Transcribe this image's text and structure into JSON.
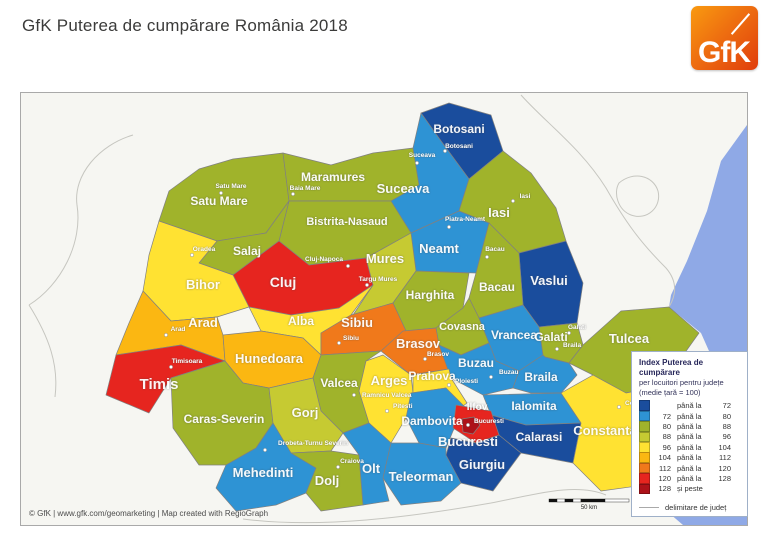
{
  "header": {
    "title": "GfK Puterea de cumpărare România 2018",
    "logo_text": "GfK"
  },
  "footer": {
    "credit": "© GfK | www.gfk.com/geomarketing | Map created with RegioGraph"
  },
  "legend": {
    "title": "Index Puterea de cumpărare",
    "subtitle": "per locuitori pentru județe",
    "note": "(medie țară = 100)",
    "delimiter_label": "delimitare de județ",
    "buckets": [
      {
        "color": "#1a4d9d",
        "from": "",
        "rel": "până la",
        "to": "72"
      },
      {
        "color": "#2e93d4",
        "from": "72",
        "rel": "până la",
        "to": "80"
      },
      {
        "color": "#a0b32b",
        "from": "80",
        "rel": "până la",
        "to": "88"
      },
      {
        "color": "#c6ca32",
        "from": "88",
        "rel": "până la",
        "to": "96"
      },
      {
        "color": "#ffe232",
        "from": "96",
        "rel": "până la",
        "to": "104"
      },
      {
        "color": "#fbb712",
        "from": "104",
        "rel": "până la",
        "to": "112"
      },
      {
        "color": "#f0791b",
        "from": "112",
        "rel": "până la",
        "to": "120"
      },
      {
        "color": "#e6251f",
        "from": "120",
        "rel": "până la",
        "to": "128"
      },
      {
        "color": "#ad1219",
        "from": "128",
        "rel": "și peste",
        "to": ""
      }
    ]
  },
  "map": {
    "sea_color": "#8fa9e6",
    "land_color": "#f6f6f2",
    "scale_label": "50 km",
    "counties": [
      {
        "id": "satu_mare",
        "name": "Satu Mare",
        "bucket": 2,
        "city": "Satu Mare"
      },
      {
        "id": "maramures",
        "name": "Maramures",
        "bucket": 2,
        "city": "Baia Mare"
      },
      {
        "id": "botosani",
        "name": "Botosani",
        "bucket": 0,
        "city": "Botosani"
      },
      {
        "id": "suceava",
        "name": "Suceava",
        "bucket": 1,
        "city": "Suceava"
      },
      {
        "id": "bistrita_nasaud",
        "name": "Bistrita-Nasaud",
        "bucket": 2
      },
      {
        "id": "iasi",
        "name": "Iasi",
        "bucket": 2,
        "city": "Iasi"
      },
      {
        "id": "neamt",
        "name": "Neamt",
        "bucket": 1,
        "city": "Piatra-Neamt"
      },
      {
        "id": "vaslui",
        "name": "Vaslui",
        "bucket": 0
      },
      {
        "id": "salaj",
        "name": "Salaj",
        "bucket": 2
      },
      {
        "id": "cluj",
        "name": "Cluj",
        "bucket": 7,
        "city": "Cluj-Napoca"
      },
      {
        "id": "bihor",
        "name": "Bihor",
        "bucket": 4,
        "city": "Oradea"
      },
      {
        "id": "mures",
        "name": "Mures",
        "bucket": 3,
        "city": "Targu Mures"
      },
      {
        "id": "bacau",
        "name": "Bacau",
        "bucket": 2,
        "city": "Bacau"
      },
      {
        "id": "harghita",
        "name": "Harghita",
        "bucket": 2
      },
      {
        "id": "covasna",
        "name": "Covasna",
        "bucket": 2
      },
      {
        "id": "vrancea",
        "name": "Vrancea",
        "bucket": 1
      },
      {
        "id": "galati",
        "name": "Galati",
        "bucket": 2,
        "city": "Galati"
      },
      {
        "id": "alba",
        "name": "Alba",
        "bucket": 4
      },
      {
        "id": "sibiu",
        "name": "Sibiu",
        "bucket": 6,
        "city": "Sibiu"
      },
      {
        "id": "brasov",
        "name": "Brasov",
        "bucket": 6,
        "city": "Brasov"
      },
      {
        "id": "arad",
        "name": "Arad",
        "bucket": 5,
        "city": "Arad"
      },
      {
        "id": "hunedoara",
        "name": "Hunedoara",
        "bucket": 5
      },
      {
        "id": "timis",
        "name": "Timis",
        "bucket": 7,
        "city": "Timisoara"
      },
      {
        "id": "caras_severin",
        "name": "Caras-Severin",
        "bucket": 2
      },
      {
        "id": "valcea",
        "name": "Valcea",
        "bucket": 2,
        "city": "Ramnicu Valcea"
      },
      {
        "id": "arges",
        "name": "Arges",
        "bucket": 4,
        "city": "Pitesti"
      },
      {
        "id": "buzau",
        "name": "Buzau",
        "bucket": 1,
        "city": "Buzau"
      },
      {
        "id": "braila",
        "name": "Braila",
        "bucket": 1,
        "city": "Braila"
      },
      {
        "id": "tulcea",
        "name": "Tulcea",
        "bucket": 2
      },
      {
        "id": "prahova",
        "name": "Prahova",
        "bucket": 4,
        "city": "Ploiesti"
      },
      {
        "id": "gorj",
        "name": "Gorj",
        "bucket": 3
      },
      {
        "id": "mehedinti",
        "name": "Mehedinti",
        "bucket": 1,
        "city": "Drobeta-Turnu Severin"
      },
      {
        "id": "dolj",
        "name": "Dolj",
        "bucket": 2,
        "city": "Craiova"
      },
      {
        "id": "olt",
        "name": "Olt",
        "bucket": 1
      },
      {
        "id": "dambovita",
        "name": "Dambovita",
        "bucket": 1
      },
      {
        "id": "teleorman",
        "name": "Teleorman",
        "bucket": 1
      },
      {
        "id": "giurgiu",
        "name": "Giurgiu",
        "bucket": 0
      },
      {
        "id": "ialomita",
        "name": "Ialomita",
        "bucket": 1
      },
      {
        "id": "calarasi",
        "name": "Calarasi",
        "bucket": 0
      },
      {
        "id": "ilfov",
        "name": "Ilfov",
        "bucket": 7,
        "city": "Bucuresti"
      },
      {
        "id": "constanta",
        "name": "Constanta",
        "bucket": 4,
        "city": "Constanta"
      },
      {
        "id": "bucuresti",
        "name": "Bucuresti",
        "bucket": 8
      }
    ]
  }
}
